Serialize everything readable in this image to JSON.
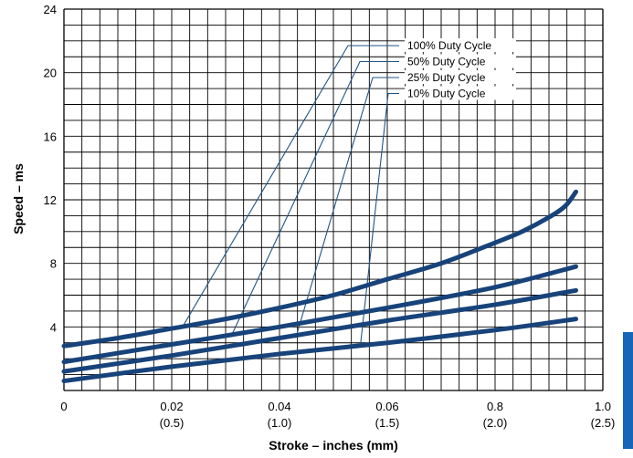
{
  "chart_data": {
    "type": "line",
    "title": "",
    "xlabel": "Stroke – inches (mm)",
    "ylabel": "Speed – ms",
    "xlim": [
      0,
      1.0
    ],
    "ylim": [
      0,
      24
    ],
    "grid": true,
    "legend": "top-right",
    "x_ticks": [
      {
        "value": 0,
        "label": "0",
        "sub": ""
      },
      {
        "value": 0.2,
        "label": "0.02",
        "sub": "(0.5)"
      },
      {
        "value": 0.4,
        "label": "0.04",
        "sub": "(1.0)"
      },
      {
        "value": 0.6,
        "label": "0.06",
        "sub": "(1.5)"
      },
      {
        "value": 0.8,
        "label": "0.8",
        "sub": "(2.0)"
      },
      {
        "value": 1.0,
        "label": "1.0",
        "sub": "(2.5)"
      }
    ],
    "y_ticks": [
      {
        "value": 4,
        "label": "4"
      },
      {
        "value": 8,
        "label": "8"
      },
      {
        "value": 12,
        "label": "12"
      },
      {
        "value": 16,
        "label": "16"
      },
      {
        "value": 20,
        "label": "20"
      },
      {
        "value": 24,
        "label": "24"
      }
    ],
    "series": [
      {
        "name": "100% Duty Cycle",
        "x": [
          0,
          0.1,
          0.2,
          0.3,
          0.4,
          0.5,
          0.6,
          0.7,
          0.8,
          0.85,
          0.9,
          0.93,
          0.95
        ],
        "y": [
          2.8,
          3.3,
          3.9,
          4.5,
          5.2,
          6.0,
          7.0,
          8.0,
          9.3,
          10.0,
          10.9,
          11.6,
          12.5
        ],
        "label_anchor": [
          0.22,
          4.0
        ]
      },
      {
        "name": "50% Duty Cycle",
        "x": [
          0,
          0.2,
          0.4,
          0.6,
          0.8,
          0.95
        ],
        "y": [
          1.8,
          2.9,
          4.0,
          5.2,
          6.5,
          7.8
        ],
        "label_anchor": [
          0.31,
          3.4
        ]
      },
      {
        "name": "25% Duty Cycle",
        "x": [
          0,
          0.2,
          0.4,
          0.6,
          0.8,
          0.95
        ],
        "y": [
          1.2,
          2.2,
          3.3,
          4.4,
          5.4,
          6.3
        ],
        "label_anchor": [
          0.43,
          3.3
        ]
      },
      {
        "name": "10% Duty Cycle",
        "x": [
          0,
          0.2,
          0.4,
          0.6,
          0.8,
          0.95
        ],
        "y": [
          0.6,
          1.5,
          2.3,
          3.0,
          3.8,
          4.5
        ],
        "label_anchor": [
          0.55,
          2.8
        ]
      }
    ]
  },
  "colors": {
    "series_line": "#17437a",
    "leader_line": "#1f5586",
    "grid": "#000000",
    "side_tab": "#1565b8"
  }
}
